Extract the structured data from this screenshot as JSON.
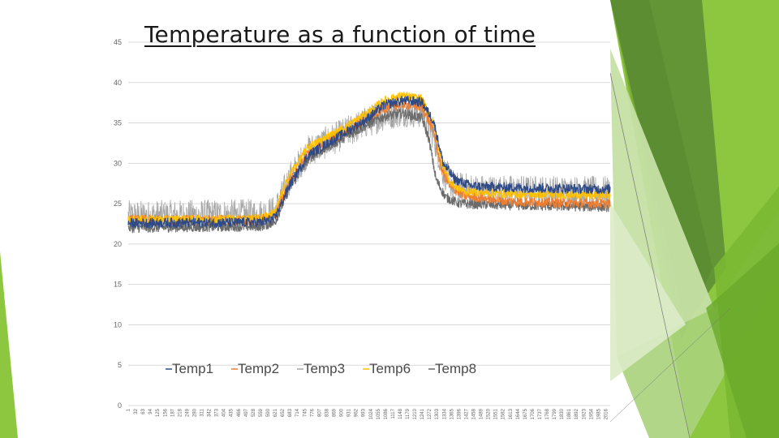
{
  "chart_data": {
    "type": "line",
    "title": "Temperature as a function of time",
    "xlabel": "",
    "ylabel": "",
    "ylim": [
      0,
      45
    ],
    "yticks": [
      0,
      5,
      10,
      15,
      20,
      25,
      30,
      35,
      40,
      45
    ],
    "xticks": [
      1,
      32,
      63,
      94,
      125,
      156,
      187,
      218,
      249,
      280,
      311,
      342,
      373,
      404,
      435,
      466,
      497,
      528,
      559,
      590,
      621,
      652,
      683,
      714,
      745,
      776,
      807,
      838,
      869,
      900,
      931,
      962,
      993,
      1024,
      1055,
      1086,
      1117,
      1148,
      1179,
      1210,
      1241,
      1272,
      1303,
      1334,
      1365,
      1396,
      1427,
      1458,
      1489,
      1520,
      1551,
      1582,
      1613,
      1644,
      1675,
      1706,
      1737,
      1768,
      1799,
      1830,
      1861,
      1892,
      1923,
      1954,
      1985,
      2016
    ],
    "xlim": [
      1,
      2035
    ],
    "grid": true,
    "legend_position": "bottom-center",
    "series": [
      {
        "name": "Temp1",
        "color": "#2e4a87",
        "noise": 0.6,
        "points": [
          [
            1,
            22.6
          ],
          [
            560,
            22.7
          ],
          [
            620,
            23.2
          ],
          [
            680,
            27.2
          ],
          [
            760,
            31.0
          ],
          [
            900,
            33.5
          ],
          [
            1000,
            35.3
          ],
          [
            1080,
            37.2
          ],
          [
            1160,
            37.8
          ],
          [
            1240,
            37.6
          ],
          [
            1290,
            35.2
          ],
          [
            1330,
            30.0
          ],
          [
            1380,
            28.0
          ],
          [
            1450,
            27.2
          ],
          [
            1600,
            27.0
          ],
          [
            1800,
            26.9
          ],
          [
            2035,
            26.8
          ]
        ]
      },
      {
        "name": "Temp2",
        "color": "#ed7d31",
        "noise": 0.6,
        "points": [
          [
            1,
            23.0
          ],
          [
            560,
            23.0
          ],
          [
            620,
            23.5
          ],
          [
            680,
            27.6
          ],
          [
            760,
            31.2
          ],
          [
            900,
            33.6
          ],
          [
            1000,
            35.4
          ],
          [
            1080,
            36.8
          ],
          [
            1160,
            37.3
          ],
          [
            1240,
            37.0
          ],
          [
            1290,
            34.0
          ],
          [
            1320,
            29.5
          ],
          [
            1360,
            27.0
          ],
          [
            1420,
            26.0
          ],
          [
            1600,
            25.3
          ],
          [
            1800,
            25.1
          ],
          [
            2035,
            25.0
          ]
        ]
      },
      {
        "name": "Temp3",
        "color": "#a5a5a5",
        "noise": 2.0,
        "points": [
          [
            1,
            23.4
          ],
          [
            560,
            23.6
          ],
          [
            620,
            24.0
          ],
          [
            680,
            28.0
          ],
          [
            760,
            31.5
          ],
          [
            900,
            33.5
          ],
          [
            1000,
            35.0
          ],
          [
            1080,
            36.0
          ],
          [
            1160,
            36.5
          ],
          [
            1240,
            36.3
          ],
          [
            1290,
            33.5
          ],
          [
            1330,
            29.0
          ],
          [
            1380,
            27.0
          ],
          [
            1500,
            26.6
          ],
          [
            1800,
            26.5
          ],
          [
            2035,
            26.4
          ]
        ]
      },
      {
        "name": "Temp6",
        "color": "#ffc000",
        "noise": 0.5,
        "points": [
          [
            1,
            23.0
          ],
          [
            560,
            23.2
          ],
          [
            620,
            24.0
          ],
          [
            680,
            28.5
          ],
          [
            760,
            32.0
          ],
          [
            900,
            34.2
          ],
          [
            1000,
            36.0
          ],
          [
            1080,
            37.8
          ],
          [
            1160,
            38.4
          ],
          [
            1240,
            38.0
          ],
          [
            1290,
            35.0
          ],
          [
            1320,
            30.5
          ],
          [
            1360,
            27.5
          ],
          [
            1420,
            26.5
          ],
          [
            1600,
            26.2
          ],
          [
            1800,
            26.1
          ],
          [
            2035,
            26.0
          ]
        ]
      },
      {
        "name": "Temp8",
        "color": "#6b6b6b",
        "noise": 0.6,
        "points": [
          [
            1,
            22.0
          ],
          [
            560,
            22.2
          ],
          [
            620,
            22.7
          ],
          [
            680,
            26.8
          ],
          [
            760,
            30.5
          ],
          [
            900,
            33.0
          ],
          [
            1000,
            34.6
          ],
          [
            1080,
            35.8
          ],
          [
            1160,
            36.2
          ],
          [
            1240,
            35.6
          ],
          [
            1270,
            33.0
          ],
          [
            1300,
            28.0
          ],
          [
            1340,
            25.8
          ],
          [
            1400,
            25.0
          ],
          [
            1600,
            24.8
          ],
          [
            1800,
            24.7
          ],
          [
            2035,
            24.6
          ]
        ]
      }
    ],
    "legend": [
      "Temp1",
      "Temp2",
      "Temp3",
      "Temp6",
      "Temp8"
    ],
    "draw_order": [
      "Temp3",
      "Temp8",
      "Temp2",
      "Temp6",
      "Temp1"
    ]
  },
  "theme": {
    "accent_light": "#c5e0a5",
    "accent_mid": "#8dc63f",
    "accent_dark": "#5e8f35",
    "grid_color": "#d9d9d9"
  }
}
